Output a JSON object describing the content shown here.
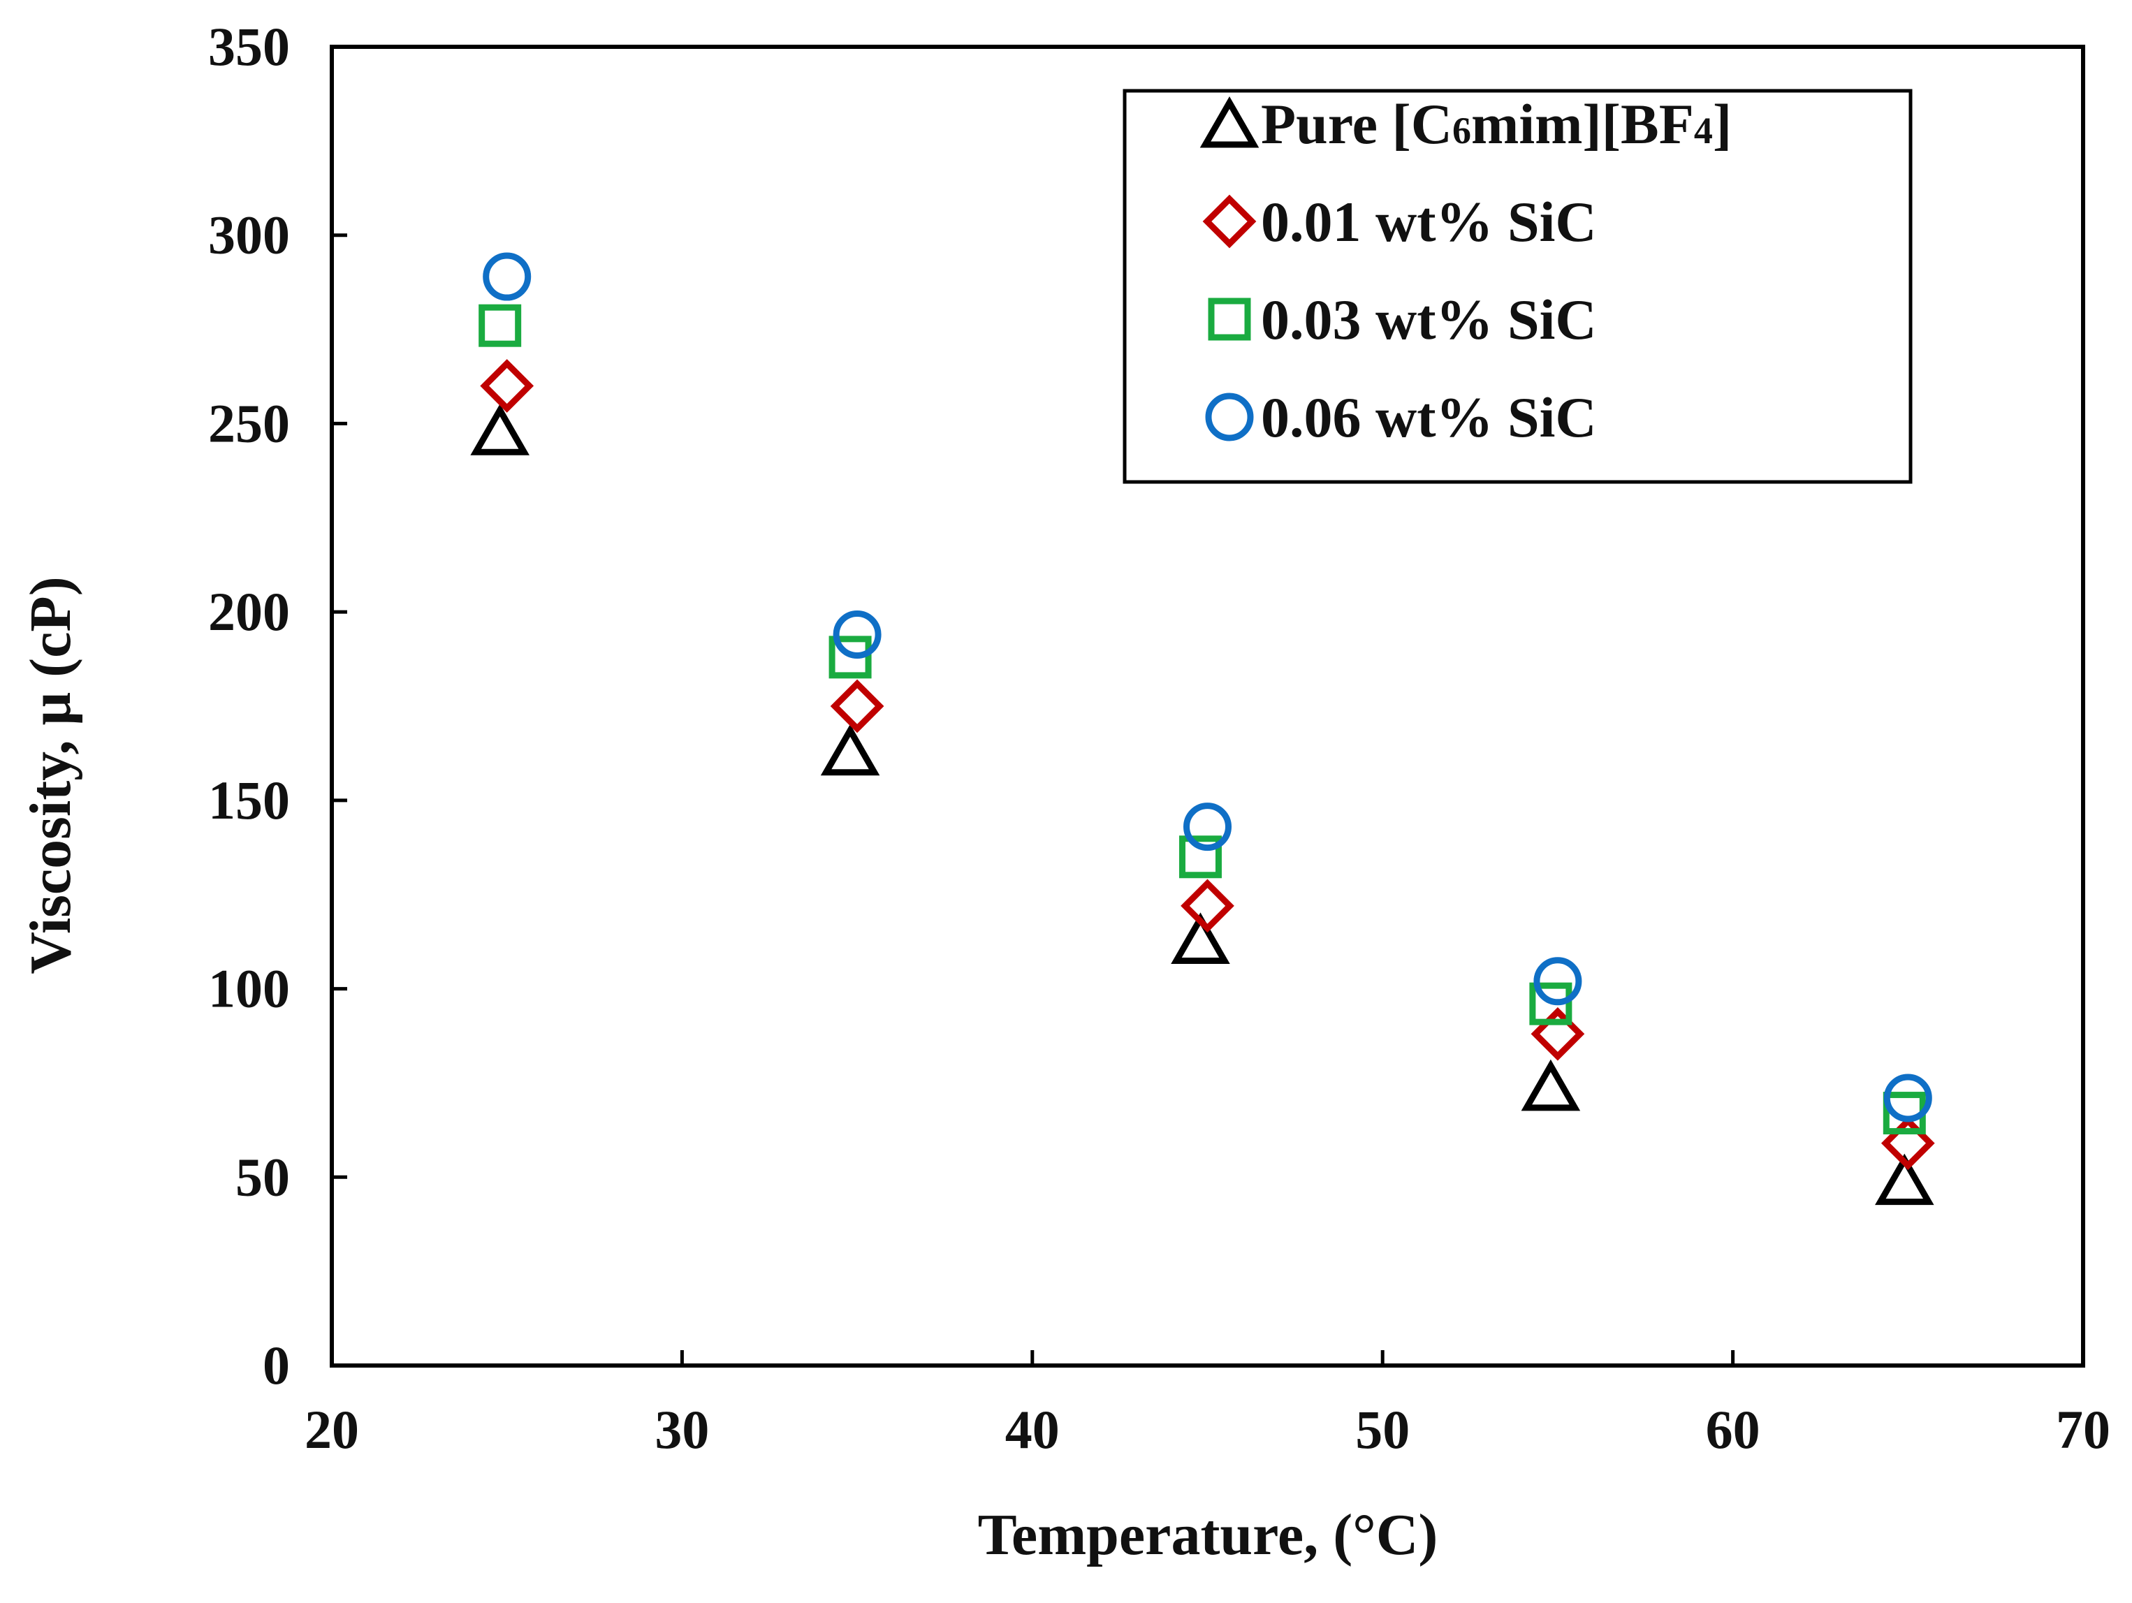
{
  "chart_data": {
    "type": "scatter",
    "xlabel": "Temperature, (°C)",
    "ylabel": "Viscosity, μ (cP)",
    "xlim": [
      20,
      70
    ],
    "ylim": [
      0,
      350
    ],
    "x_ticks": [
      "20",
      "30",
      "40",
      "50",
      "60",
      "70"
    ],
    "y_ticks": [
      "0",
      "50",
      "100",
      "150",
      "200",
      "250",
      "300",
      "350"
    ],
    "grid": false,
    "legend_position": "top-right",
    "series": [
      {
        "name": "Pure [C6mim][BF4]",
        "legend_main": "Pure [C",
        "legend_sub1": "6",
        "legend_mid": "mim][BF",
        "legend_sub2": "4",
        "legend_end": "]",
        "marker": "triangle",
        "color": "#000000",
        "x": [
          24.8,
          34.8,
          44.8,
          54.8,
          64.9
        ],
        "y": [
          248,
          163,
          113,
          74,
          49
        ]
      },
      {
        "name": "0.01 wt% SiC",
        "marker": "diamond",
        "color": "#c00000",
        "x": [
          25.0,
          35.0,
          45.0,
          55.0,
          65.0
        ],
        "y": [
          260,
          175,
          122,
          88,
          59
        ]
      },
      {
        "name": "0.03 wt% SiC",
        "marker": "square",
        "color": "#1aab40",
        "x": [
          24.8,
          34.8,
          44.8,
          54.8,
          64.9
        ],
        "y": [
          276,
          188,
          135,
          96,
          67
        ]
      },
      {
        "name": "0.06 wt% SiC",
        "marker": "circle",
        "color": "#0f6fc6",
        "x": [
          25.0,
          35.0,
          45.0,
          55.0,
          65.0
        ],
        "y": [
          289,
          194,
          143,
          102,
          71
        ]
      }
    ]
  }
}
